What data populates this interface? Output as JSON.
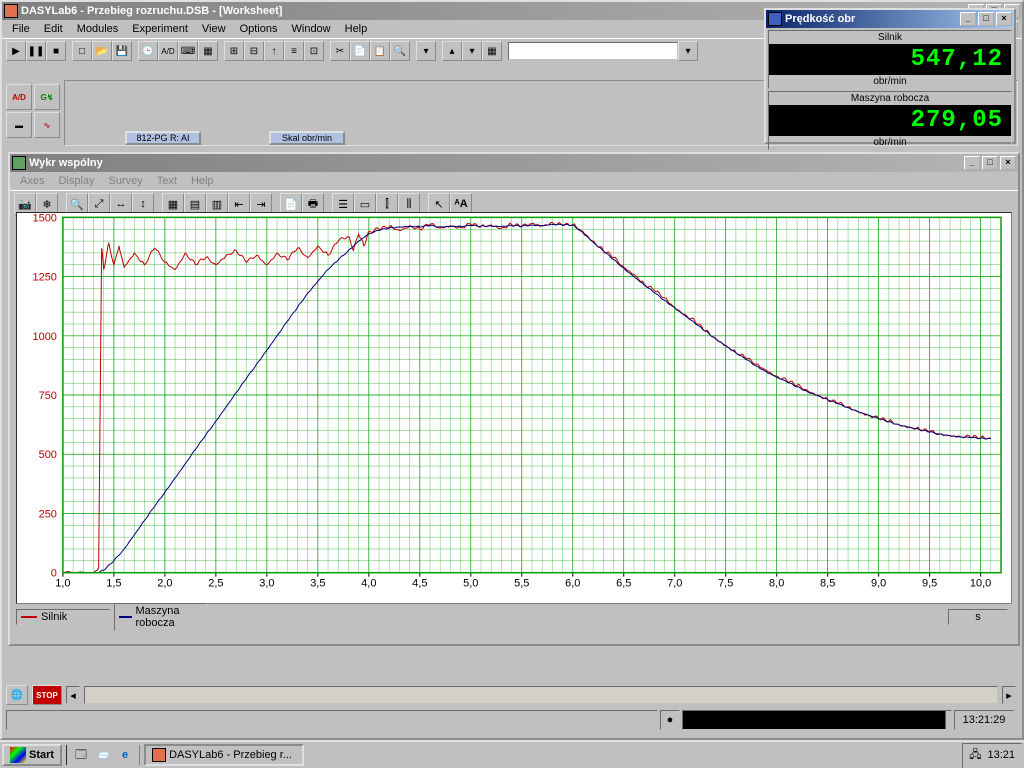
{
  "main": {
    "title": "DASYLab6 - Przebieg rozruchu.DSB - [Worksheet]",
    "menus": [
      "File",
      "Edit",
      "Modules",
      "Experiment",
      "View",
      "Options",
      "Window",
      "Help"
    ],
    "modules": {
      "m1": "812-PG R: AI",
      "m2": "Skal obr/min"
    }
  },
  "chart": {
    "title": "Wykr wspólny",
    "menus": [
      "Axes",
      "Display",
      "Survey",
      "Text",
      "Help"
    ],
    "type": "line",
    "xlim": [
      1.0,
      10.2
    ],
    "ylim": [
      0,
      1500
    ],
    "ytick_step": 250,
    "xtick_step": 0.5,
    "x_unit_label": "s",
    "grid_color": "#00a000",
    "background_color": "#ffffff",
    "axis_border_color": "#00a000",
    "yaxis_label_color": "#c00000",
    "series": [
      {
        "name": "Silnik",
        "color": "#c00000",
        "data": [
          [
            1.0,
            0
          ],
          [
            1.3,
            0
          ],
          [
            1.35,
            20
          ],
          [
            1.38,
            1370
          ],
          [
            1.4,
            1280
          ],
          [
            1.45,
            1390
          ],
          [
            1.5,
            1300
          ],
          [
            1.55,
            1380
          ],
          [
            1.6,
            1290
          ],
          [
            1.7,
            1350
          ],
          [
            1.8,
            1300
          ],
          [
            1.9,
            1370
          ],
          [
            2.0,
            1310
          ],
          [
            2.1,
            1280
          ],
          [
            2.2,
            1350
          ],
          [
            2.3,
            1300
          ],
          [
            2.4,
            1330
          ],
          [
            2.5,
            1300
          ],
          [
            2.6,
            1340
          ],
          [
            2.7,
            1360
          ],
          [
            2.8,
            1310
          ],
          [
            2.9,
            1340
          ],
          [
            3.0,
            1300
          ],
          [
            3.1,
            1350
          ],
          [
            3.2,
            1320
          ],
          [
            3.3,
            1370
          ],
          [
            3.4,
            1330
          ],
          [
            3.5,
            1380
          ],
          [
            3.6,
            1340
          ],
          [
            3.7,
            1400
          ],
          [
            3.8,
            1420
          ],
          [
            3.85,
            1360
          ],
          [
            3.9,
            1430
          ],
          [
            3.95,
            1380
          ],
          [
            4.0,
            1440
          ],
          [
            4.1,
            1450
          ],
          [
            4.2,
            1460
          ],
          [
            4.3,
            1445
          ],
          [
            4.4,
            1465
          ],
          [
            4.5,
            1450
          ],
          [
            4.6,
            1470
          ],
          [
            4.7,
            1455
          ],
          [
            4.8,
            1465
          ],
          [
            4.9,
            1458
          ],
          [
            5.0,
            1470
          ],
          [
            5.1,
            1460
          ],
          [
            5.2,
            1468
          ],
          [
            5.3,
            1455
          ],
          [
            5.4,
            1470
          ],
          [
            5.5,
            1460
          ],
          [
            5.6,
            1475
          ],
          [
            5.7,
            1465
          ],
          [
            5.8,
            1478
          ],
          [
            5.9,
            1465
          ],
          [
            6.0,
            1470
          ],
          [
            6.1,
            1440
          ],
          [
            6.2,
            1400
          ],
          [
            6.3,
            1360
          ],
          [
            6.4,
            1330
          ],
          [
            6.5,
            1290
          ],
          [
            6.6,
            1260
          ],
          [
            6.7,
            1220
          ],
          [
            6.8,
            1190
          ],
          [
            6.9,
            1160
          ],
          [
            7.0,
            1120
          ],
          [
            7.1,
            1090
          ],
          [
            7.2,
            1060
          ],
          [
            7.3,
            1020
          ],
          [
            7.4,
            990
          ],
          [
            7.5,
            960
          ],
          [
            7.6,
            930
          ],
          [
            7.7,
            905
          ],
          [
            7.8,
            880
          ],
          [
            7.9,
            855
          ],
          [
            8.0,
            830
          ],
          [
            8.1,
            810
          ],
          [
            8.2,
            790
          ],
          [
            8.3,
            770
          ],
          [
            8.4,
            750
          ],
          [
            8.5,
            730
          ],
          [
            8.6,
            715
          ],
          [
            8.7,
            700
          ],
          [
            8.8,
            680
          ],
          [
            8.9,
            665
          ],
          [
            9.0,
            650
          ],
          [
            9.1,
            640
          ],
          [
            9.2,
            625
          ],
          [
            9.3,
            615
          ],
          [
            9.4,
            605
          ],
          [
            9.5,
            595
          ],
          [
            9.6,
            585
          ],
          [
            9.7,
            580
          ],
          [
            9.8,
            575
          ],
          [
            9.9,
            572
          ],
          [
            10.0,
            570
          ],
          [
            10.1,
            568
          ]
        ],
        "noise": 18
      },
      {
        "name": "Maszyna robocza",
        "color": "#000080",
        "data": [
          [
            1.0,
            0
          ],
          [
            1.35,
            0
          ],
          [
            1.4,
            10
          ],
          [
            1.5,
            50
          ],
          [
            1.6,
            100
          ],
          [
            1.7,
            160
          ],
          [
            1.8,
            220
          ],
          [
            1.9,
            280
          ],
          [
            2.0,
            340
          ],
          [
            2.1,
            400
          ],
          [
            2.2,
            460
          ],
          [
            2.3,
            520
          ],
          [
            2.4,
            580
          ],
          [
            2.5,
            640
          ],
          [
            2.6,
            700
          ],
          [
            2.7,
            760
          ],
          [
            2.8,
            820
          ],
          [
            2.9,
            880
          ],
          [
            3.0,
            940
          ],
          [
            3.1,
            1000
          ],
          [
            3.2,
            1060
          ],
          [
            3.3,
            1120
          ],
          [
            3.4,
            1180
          ],
          [
            3.5,
            1230
          ],
          [
            3.6,
            1280
          ],
          [
            3.7,
            1320
          ],
          [
            3.8,
            1360
          ],
          [
            3.9,
            1400
          ],
          [
            4.0,
            1430
          ],
          [
            4.1,
            1445
          ],
          [
            4.2,
            1455
          ],
          [
            4.3,
            1460
          ],
          [
            4.4,
            1462
          ],
          [
            4.5,
            1460
          ],
          [
            4.6,
            1465
          ],
          [
            4.7,
            1460
          ],
          [
            4.8,
            1463
          ],
          [
            4.9,
            1462
          ],
          [
            5.0,
            1465
          ],
          [
            5.1,
            1463
          ],
          [
            5.2,
            1464
          ],
          [
            5.3,
            1462
          ],
          [
            5.4,
            1465
          ],
          [
            5.5,
            1463
          ],
          [
            5.6,
            1468
          ],
          [
            5.7,
            1465
          ],
          [
            5.8,
            1470
          ],
          [
            5.9,
            1468
          ],
          [
            6.0,
            1468
          ],
          [
            6.1,
            1435
          ],
          [
            6.2,
            1395
          ],
          [
            6.3,
            1358
          ],
          [
            6.4,
            1322
          ],
          [
            6.5,
            1285
          ],
          [
            6.6,
            1250
          ],
          [
            6.7,
            1215
          ],
          [
            6.8,
            1182
          ],
          [
            6.9,
            1150
          ],
          [
            7.0,
            1118
          ],
          [
            7.1,
            1085
          ],
          [
            7.2,
            1052
          ],
          [
            7.3,
            1020
          ],
          [
            7.4,
            988
          ],
          [
            7.5,
            958
          ],
          [
            7.6,
            928
          ],
          [
            7.7,
            900
          ],
          [
            7.8,
            873
          ],
          [
            7.9,
            848
          ],
          [
            8.0,
            825
          ],
          [
            8.1,
            805
          ],
          [
            8.2,
            785
          ],
          [
            8.3,
            765
          ],
          [
            8.4,
            748
          ],
          [
            8.5,
            730
          ],
          [
            8.6,
            713
          ],
          [
            8.7,
            697
          ],
          [
            8.8,
            680
          ],
          [
            8.9,
            665
          ],
          [
            9.0,
            650
          ],
          [
            9.1,
            637
          ],
          [
            9.2,
            625
          ],
          [
            9.3,
            614
          ],
          [
            9.4,
            604
          ],
          [
            9.5,
            594
          ],
          [
            9.6,
            586
          ],
          [
            9.7,
            578
          ],
          [
            9.8,
            573
          ],
          [
            9.9,
            570
          ],
          [
            10.0,
            568
          ],
          [
            10.1,
            566
          ]
        ],
        "noise": 6
      }
    ]
  },
  "digital": {
    "title": "Prędkość obr",
    "panels": [
      {
        "label": "Silnik",
        "value": "547,12",
        "unit": "obr/min"
      },
      {
        "label": "Maszyna robocza",
        "value": "279,05",
        "unit": "obr/min"
      }
    ],
    "value_color": "#00ff00",
    "value_bg": "#000000"
  },
  "status": {
    "time": "13:21:29"
  },
  "taskbar": {
    "start": "Start",
    "app": "DASYLab6 - Przebieg r...",
    "clock": "13:21"
  }
}
